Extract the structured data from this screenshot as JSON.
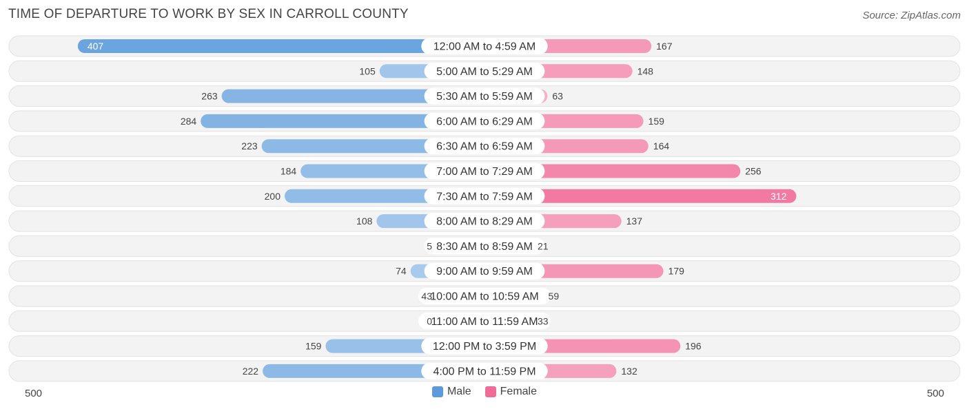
{
  "header": {
    "title": "TIME OF DEPARTURE TO WORK BY SEX IN CARROLL COUNTY",
    "source": "Source: ZipAtlas.com"
  },
  "axis": {
    "left_label": "500",
    "right_label": "500"
  },
  "legend": {
    "male_label": "Male",
    "female_label": "Female",
    "male_color": "#5b9bdb",
    "female_color": "#f06b98"
  },
  "chart_data": {
    "type": "bar",
    "orientation": "horizontal-diverging",
    "title": "TIME OF DEPARTURE TO WORK BY SEX IN CARROLL COUNTY",
    "xlim": [
      -500,
      500
    ],
    "categories": [
      "12:00 AM to 4:59 AM",
      "5:00 AM to 5:29 AM",
      "5:30 AM to 5:59 AM",
      "6:00 AM to 6:29 AM",
      "6:30 AM to 6:59 AM",
      "7:00 AM to 7:29 AM",
      "7:30 AM to 7:59 AM",
      "8:00 AM to 8:29 AM",
      "8:30 AM to 8:59 AM",
      "9:00 AM to 9:59 AM",
      "10:00 AM to 10:59 AM",
      "11:00 AM to 11:59 AM",
      "12:00 PM to 3:59 PM",
      "4:00 PM to 11:59 PM"
    ],
    "series": [
      {
        "name": "Male",
        "values": [
          407,
          105,
          263,
          284,
          223,
          184,
          200,
          108,
          5,
          74,
          43,
          0,
          159,
          222
        ]
      },
      {
        "name": "Female",
        "values": [
          167,
          148,
          63,
          159,
          164,
          256,
          312,
          137,
          21,
          179,
          59,
          33,
          196,
          132
        ]
      }
    ],
    "legend_position": "bottom-center"
  }
}
